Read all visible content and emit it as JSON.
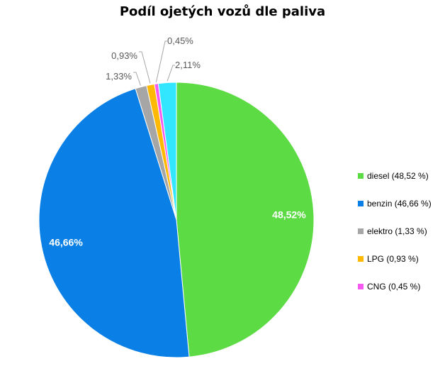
{
  "chart_data": {
    "type": "pie",
    "title": "Podíl ojetých vozů dle paliva",
    "slices": [
      {
        "label": "diesel (48,52 %)",
        "value": 48.52,
        "data_label": "48,52%",
        "color": "#5DDB45"
      },
      {
        "label": "benzin (46,66 %)",
        "value": 46.66,
        "data_label": "46,66%",
        "color": "#0A7FE6"
      },
      {
        "label": "elektro (1,33 %)",
        "value": 1.33,
        "data_label": "1,33%",
        "color": "#A6A6A6"
      },
      {
        "label": "LPG (0,93 %)",
        "value": 0.93,
        "data_label": "0,93%",
        "color": "#FFB900"
      },
      {
        "label": "CNG (0,45 %)",
        "value": 0.45,
        "data_label": "0,45%",
        "color": "#F55AF0"
      },
      {
        "label": "",
        "value": 2.11,
        "data_label": "2,11%",
        "color": "#33E6FF"
      }
    ],
    "legend_position": "right"
  }
}
